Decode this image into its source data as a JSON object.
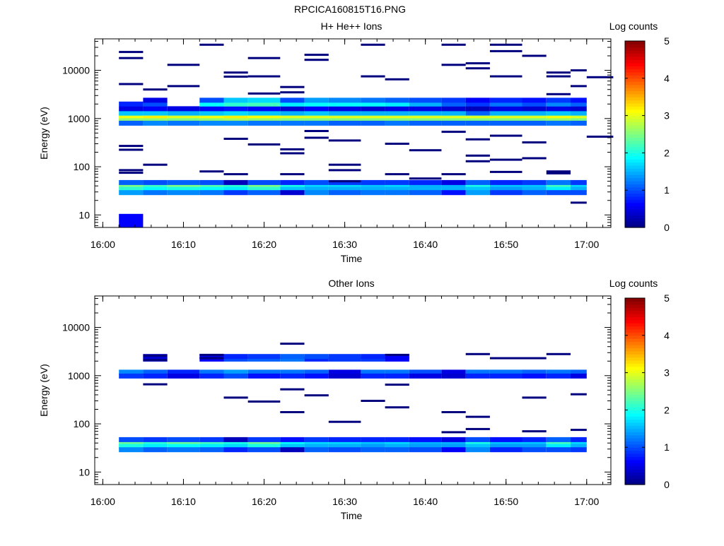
{
  "figure": {
    "title": "RPCICA160815T16.PNG"
  },
  "colors": {
    "axis": "#000000",
    "background": "#ffffff",
    "colormap": [
      "#00007f",
      "#0000ff",
      "#007fff",
      "#00ffff",
      "#7fff7f",
      "#ffff00",
      "#ff7f00",
      "#ff0000",
      "#7f0000"
    ]
  },
  "chart_data": [
    {
      "type": "heatmap",
      "title": "H+ He++ Ions",
      "xlabel": "Time",
      "ylabel": "Energy (eV)",
      "x_ticks": [
        "16:00",
        "16:10",
        "16:20",
        "16:30",
        "16:40",
        "16:50",
        "17:00"
      ],
      "xlim": [
        "15:59",
        "17:03"
      ],
      "yscale": "log",
      "ylim": [
        5.5,
        45000
      ],
      "y_ticks": [
        "10",
        "100",
        "1000",
        "10000"
      ],
      "colorbar": {
        "label": "Log counts",
        "ticks": [
          "0",
          "1",
          "2",
          "3",
          "4",
          "5"
        ],
        "range": [
          0,
          5
        ]
      },
      "time_bins": [
        "16:02",
        "16:05",
        "16:08",
        "16:12",
        "16:15",
        "16:18",
        "16:22",
        "16:25",
        "16:28",
        "16:32",
        "16:35",
        "16:38",
        "16:42",
        "16:45",
        "16:48",
        "16:52",
        "16:55",
        "16:58",
        "17:00"
      ],
      "rows": [
        {
          "e": 1150,
          "v": [
            2.6,
            2.8,
            2.6,
            2.6,
            2.7,
            2.9,
            2.7,
            2.6,
            2.5,
            2.5,
            2.5,
            2.6,
            2.5,
            2.5,
            2.5,
            2.5,
            2.6,
            2.5
          ]
        },
        {
          "e": 1000,
          "v": [
            3.1,
            3.2,
            3.0,
            3.1,
            3.2,
            3.1,
            3.0,
            3.0,
            3.0,
            3.0,
            3.0,
            3.0,
            3.0,
            3.0,
            3.0,
            3.0,
            3.1,
            3.0
          ]
        },
        {
          "e": 900,
          "v": [
            2.6,
            2.6,
            2.5,
            2.6,
            2.7,
            2.6,
            2.5,
            2.5,
            2.5,
            2.5,
            2.5,
            2.5,
            2.5,
            2.5,
            2.5,
            2.5,
            2.6,
            2.5
          ]
        },
        {
          "e": 1300,
          "v": [
            1.6,
            1.6,
            1.5,
            1.6,
            1.7,
            1.6,
            1.5,
            1.6,
            1.5,
            1.5,
            1.5,
            1.5,
            1.5,
            1.1,
            1.5,
            1.5,
            1.6,
            1.5
          ]
        },
        {
          "e": 800,
          "v": [
            1.1,
            1.3,
            1.2,
            1.3,
            1.3,
            1.2,
            1.2,
            1.2,
            1.1,
            1.1,
            1.2,
            1.1,
            1.1,
            1.1,
            1.1,
            1.1,
            1.2,
            1.1
          ]
        },
        {
          "e": 1600,
          "v": [
            0.5,
            0.6,
            0.5,
            0.6,
            0.7,
            0.6,
            0.4,
            0.6,
            0.5,
            0.4,
            0.5,
            0.5,
            0.4,
            0.3,
            0.5,
            0.4,
            0.5,
            0.4
          ]
        },
        {
          "e": 2000,
          "v": [
            0.8,
            1.0,
            0.0,
            1.9,
            2.1,
            2.2,
            1.8,
            1.9,
            1.9,
            1.9,
            1.8,
            1.5,
            1.1,
            0.9,
            1.2,
            1.0,
            1.3,
            1.1
          ]
        },
        {
          "e": 2400,
          "v": [
            0.0,
            0.5,
            0.0,
            1.0,
            1.6,
            1.7,
            1.0,
            1.4,
            1.3,
            1.2,
            1.1,
            1.0,
            0.9,
            0.6,
            0.8,
            0.7,
            0.9,
            0.7
          ]
        },
        {
          "e": 40,
          "v": [
            2.5,
            2.2,
            2.5,
            2.3,
            2.1,
            2.5,
            2.0,
            1.7,
            1.7,
            1.6,
            1.7,
            1.5,
            1.5,
            2.0,
            1.6,
            1.6,
            2.2,
            1.7
          ]
        },
        {
          "e": 34,
          "v": [
            2.1,
            1.9,
            2.0,
            1.9,
            1.8,
            2.1,
            1.6,
            1.5,
            1.5,
            1.5,
            1.5,
            1.5,
            1.5,
            1.6,
            1.4,
            1.5,
            1.8,
            1.5
          ]
        },
        {
          "e": 29,
          "v": [
            1.4,
            1.2,
            1.3,
            1.2,
            0.9,
            1.1,
            0.4,
            1.3,
            1.1,
            1.2,
            1.2,
            1.1,
            0.7,
            1.4,
            0.9,
            1.1,
            1.0,
            1.0
          ]
        },
        {
          "e": 47,
          "v": [
            1.1,
            1.0,
            1.1,
            1.0,
            0.3,
            1.0,
            0.8,
            1.0,
            0.9,
            0.9,
            0.9,
            0.8,
            0.5,
            1.1,
            0.8,
            0.9,
            1.2,
            0.9
          ]
        }
      ]
    },
    {
      "type": "heatmap",
      "title": "Other Ions",
      "xlabel": "Time",
      "ylabel": "Energy (eV)",
      "x_ticks": [
        "16:00",
        "16:10",
        "16:20",
        "16:30",
        "16:40",
        "16:50",
        "17:00"
      ],
      "xlim": [
        "15:59",
        "17:03"
      ],
      "yscale": "log",
      "ylim": [
        5.5,
        45000
      ],
      "y_ticks": [
        "10",
        "100",
        "1000",
        "10000"
      ],
      "colorbar": {
        "label": "Log counts",
        "ticks": [
          "0",
          "1",
          "2",
          "3",
          "4",
          "5"
        ],
        "range": [
          0,
          5
        ]
      },
      "time_bins": [
        "16:02",
        "16:05",
        "16:08",
        "16:12",
        "16:15",
        "16:18",
        "16:22",
        "16:25",
        "16:28",
        "16:32",
        "16:35",
        "16:38",
        "16:42",
        "16:45",
        "16:48",
        "16:52",
        "16:55",
        "16:58",
        "17:00"
      ],
      "rows": [
        {
          "e": 1180,
          "v": [
            1.3,
            1.1,
            0.8,
            1.2,
            1.4,
            1.2,
            1.2,
            1.1,
            0.5,
            1.2,
            1.2,
            1.0,
            0.5,
            1.2,
            1.2,
            1.1,
            1.2,
            1.1
          ]
        },
        {
          "e": 980,
          "v": [
            0.9,
            0.8,
            0.5,
            0.8,
            1.0,
            0.7,
            0.8,
            0.7,
            0.4,
            0.8,
            0.8,
            0.5,
            0.4,
            0.8,
            0.8,
            0.7,
            0.8,
            0.5
          ]
        },
        {
          "e": 2200,
          "v": [
            0.0,
            0.4,
            0.0,
            0.6,
            1.0,
            1.1,
            1.2,
            0.8,
            0.9,
            0.9,
            0.6,
            0.0,
            0.0,
            0.0,
            0.0,
            0.0,
            0.0,
            0.0
          ]
        },
        {
          "e": 2500,
          "v": [
            0.0,
            0.4,
            0.0,
            0.5,
            0.8,
            0.9,
            1.1,
            1.0,
            0.9,
            0.8,
            0.6,
            0.0,
            0.0,
            0.0,
            0.0,
            0.0,
            0.0,
            0.0
          ]
        },
        {
          "e": 40,
          "v": [
            2.4,
            2.1,
            2.4,
            2.2,
            2.0,
            2.4,
            1.9,
            1.7,
            1.7,
            1.6,
            1.7,
            1.5,
            1.5,
            2.0,
            1.6,
            1.6,
            2.2,
            1.7
          ]
        },
        {
          "e": 34,
          "v": [
            2.0,
            1.8,
            1.9,
            1.8,
            1.7,
            2.0,
            1.6,
            1.5,
            1.5,
            1.4,
            1.5,
            1.4,
            1.4,
            1.6,
            1.4,
            1.4,
            1.8,
            1.5
          ]
        },
        {
          "e": 29,
          "v": [
            1.3,
            1.1,
            1.2,
            1.1,
            0.8,
            1.0,
            0.3,
            1.1,
            1.0,
            1.1,
            1.1,
            1.0,
            0.6,
            1.3,
            0.8,
            1.0,
            1.0,
            0.9
          ]
        },
        {
          "e": 47,
          "v": [
            1.0,
            0.9,
            1.0,
            0.9,
            0.3,
            0.9,
            0.7,
            0.9,
            0.8,
            0.8,
            0.8,
            0.7,
            0.5,
            1.0,
            0.7,
            0.8,
            1.1,
            0.8
          ]
        }
      ],
      "points": [
        [
          0.5,
          4600
        ],
        [
          0.4,
          2700
        ]
      ]
    }
  ]
}
